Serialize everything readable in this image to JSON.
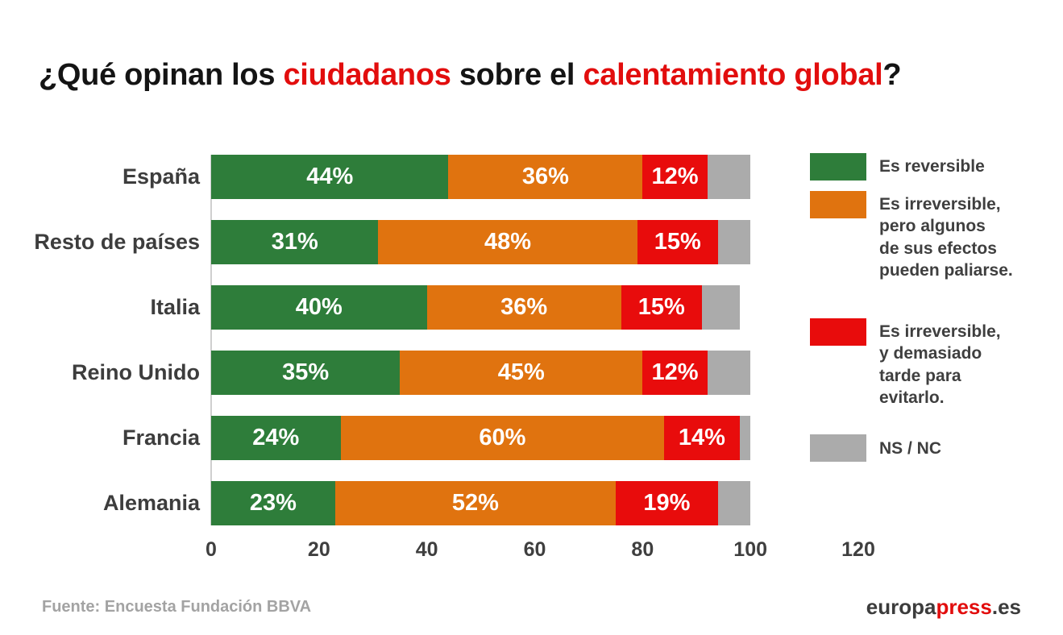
{
  "title": {
    "full": "¿Qué opinan los ciudadanos sobre el calentamiento global?",
    "segments": [
      {
        "text": "¿Qué opinan los ",
        "color": "#141414"
      },
      {
        "text": "ciudadanos",
        "color": "#e20d0d"
      },
      {
        "text": " sobre el ",
        "color": "#141414"
      },
      {
        "text": "calentamiento global",
        "color": "#e20d0d"
      },
      {
        "text": "?",
        "color": "#141414"
      }
    ]
  },
  "chart_data": {
    "type": "bar",
    "orientation": "horizontal",
    "stacked": true,
    "title": "¿Qué opinan los ciudadanos sobre el calentamiento global?",
    "categories": [
      "España",
      "Resto de países",
      "Italia",
      "Reino Unido",
      "Francia",
      "Alemania"
    ],
    "series": [
      {
        "name": "Es reversible",
        "color": "#2e7d3a",
        "values": [
          44,
          31,
          40,
          35,
          24,
          23
        ],
        "display": [
          "44%",
          "31%",
          "40%",
          "35%",
          "24%",
          "23%"
        ]
      },
      {
        "name": "Es irreversible, pero algunos de sus efectos pueden paliarse.",
        "color": "#e0730f",
        "values": [
          36,
          48,
          36,
          45,
          60,
          52
        ],
        "display": [
          "36%",
          "48%",
          "36%",
          "45%",
          "60%",
          "52%"
        ]
      },
      {
        "name": "Es irreversible, y demasiado tarde para evitarlo.",
        "color": "#e80c0c",
        "values": [
          12,
          15,
          15,
          12,
          14,
          19
        ],
        "display": [
          "12%",
          "15%",
          "15%",
          "12%",
          "14%",
          "19%"
        ]
      },
      {
        "name": "NS / NC",
        "color": "#ababab",
        "values": [
          8,
          6,
          7,
          8,
          2,
          6
        ],
        "display": [
          "",
          "",
          "",
          "",
          "",
          ""
        ]
      }
    ],
    "xlim": [
      0,
      120
    ],
    "xticks": [
      0,
      20,
      40,
      60,
      80,
      100,
      120
    ],
    "grid": false,
    "legend_position": "right"
  },
  "legend": {
    "items": [
      {
        "color": "#2e7d3a",
        "lines": [
          "Es reversible"
        ]
      },
      {
        "color": "#e0730f",
        "lines": [
          "Es irreversible,",
          "pero algunos",
          "de sus efectos",
          "pueden paliarse."
        ]
      },
      {
        "color": "#e80c0c",
        "lines": [
          "Es irreversible,",
          "y demasiado",
          "tarde para",
          "evitarlo."
        ]
      },
      {
        "color": "#ababab",
        "lines": [
          "NS / NC"
        ]
      }
    ]
  },
  "footer": {
    "source": "Fuente: Encuesta Fundación BBVA"
  },
  "logo": {
    "part1": "europa",
    "part2": "press",
    "part3": ".es"
  }
}
